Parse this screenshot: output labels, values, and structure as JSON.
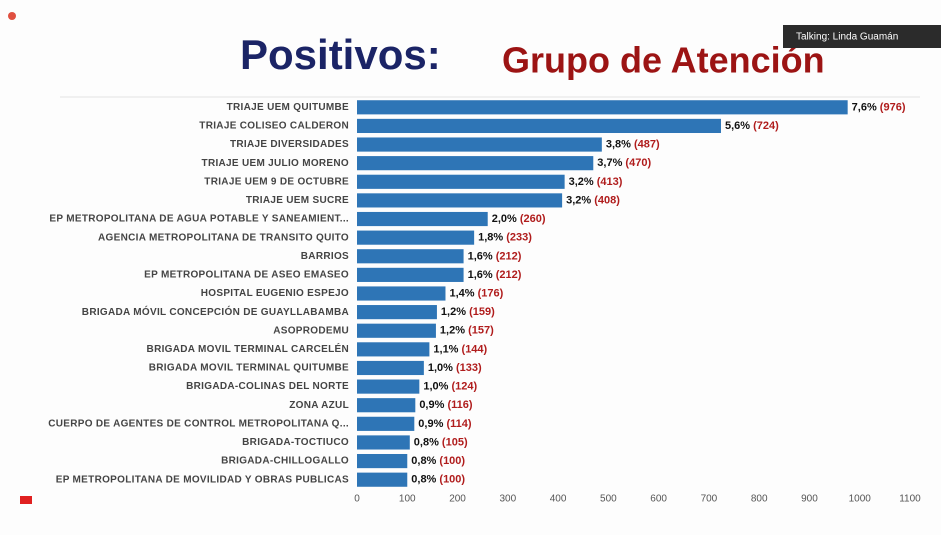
{
  "overlay": {
    "talking": "Talking: Linda Guamán"
  },
  "chart_data": {
    "type": "bar",
    "orientation": "horizontal",
    "title": "Positivos:",
    "subtitle": "Grupo de Atención",
    "categories": [
      "TRIAJE UEM QUITUMBE",
      "TRIAJE COLISEO CALDERON",
      "TRIAJE DIVERSIDADES",
      "TRIAJE UEM JULIO MORENO",
      "TRIAJE UEM 9 DE OCTUBRE",
      "TRIAJE UEM SUCRE",
      "EP METROPOLITANA DE AGUA POTABLE Y SANEAMIENT...",
      "AGENCIA METROPOLITANA DE TRANSITO QUITO",
      "BARRIOS",
      "EP METROPOLITANA DE ASEO EMASEO",
      "HOSPITAL EUGENIO ESPEJO",
      "BRIGADA MÓVIL CONCEPCIÓN DE GUAYLLABAMBA",
      "ASOPRODEMU",
      "BRIGADA MOVIL TERMINAL CARCELÉN",
      "BRIGADA MOVIL TERMINAL QUITUMBE",
      "BRIGADA-COLINAS DEL NORTE",
      "ZONA AZUL",
      "CUERPO DE AGENTES DE CONTROL METROPOLITANA Q...",
      "BRIGADA-TOCTIUCO",
      "BRIGADA-CHILLOGALLO",
      "EP METROPOLITANA DE MOVILIDAD Y OBRAS PUBLICAS"
    ],
    "values": [
      976,
      724,
      487,
      470,
      413,
      408,
      260,
      233,
      212,
      212,
      176,
      159,
      157,
      144,
      133,
      124,
      116,
      114,
      105,
      100,
      100
    ],
    "value_labels": [
      "7,6% (976)",
      "5,6% (724)",
      "3,8% (487)",
      "3,7% (470)",
      "3,2% (413)",
      "3,2% (408)",
      "2,0% (260)",
      "1,8% (233)",
      "1,6% (212)",
      "1,6% (212)",
      "1,4% (176)",
      "1,2% (159)",
      "1,2% (157)",
      "1,1% (144)",
      "1,0% (133)",
      "1,0% (124)",
      "0,9% (116)",
      "0,9% (114)",
      "0,8% (105)",
      "0,8% (100)",
      "0,8% (100)"
    ],
    "color": "#2e75b6",
    "xlim": [
      0,
      1100
    ],
    "xticks": [
      0,
      100,
      200,
      300,
      400,
      500,
      600,
      700,
      800,
      900,
      1000,
      1100
    ],
    "grid": false
  }
}
